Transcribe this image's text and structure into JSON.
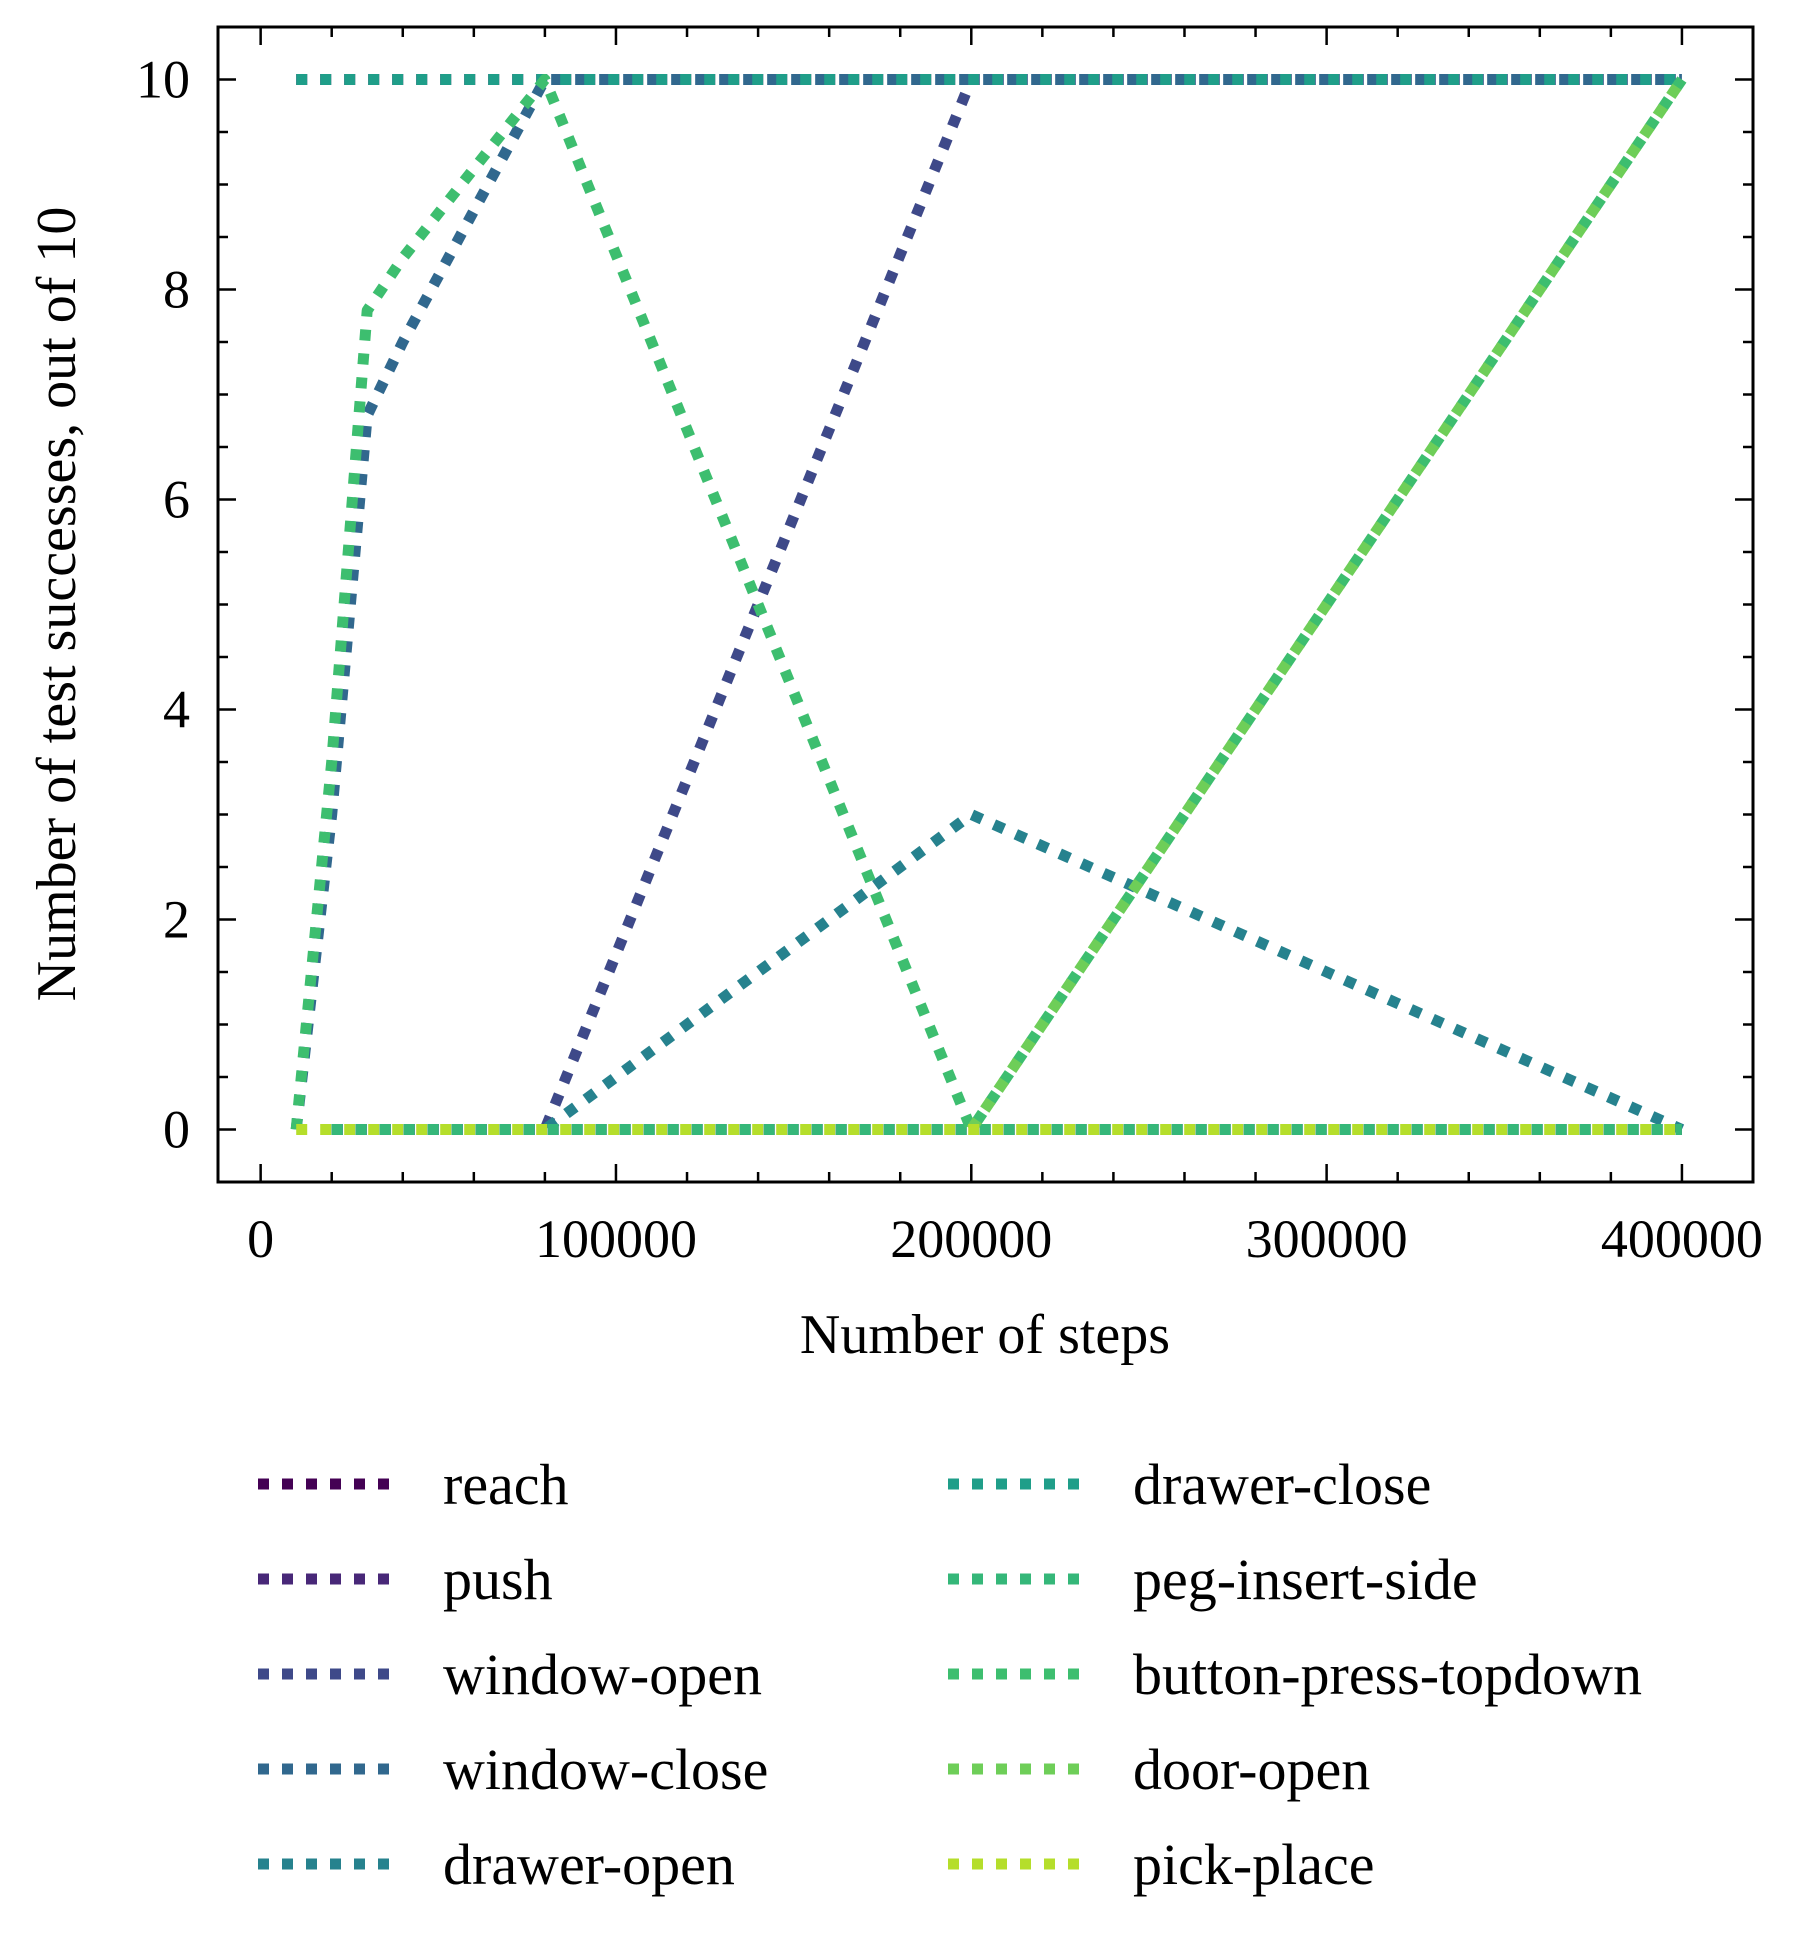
{
  "chart_data": {
    "type": "line",
    "title": "",
    "xlabel": "Number of steps",
    "ylabel": "Number of test successes, out of 10",
    "xlim": [
      -12000,
      420000
    ],
    "ylim": [
      -0.5,
      10.5
    ],
    "xticks": [
      0,
      100000,
      200000,
      300000,
      400000
    ],
    "yticks": [
      0,
      2,
      4,
      6,
      8,
      10
    ],
    "x_tick_labels": [
      "0",
      "100000",
      "200000",
      "300000",
      "400000"
    ],
    "y_tick_labels": [
      "0",
      "2",
      "4",
      "6",
      "8",
      "10"
    ],
    "grid": false,
    "line_style": "dotted",
    "legend_placement": "below",
    "series": [
      {
        "name": "reach",
        "color": "#440154",
        "x": [
          10000,
          20000,
          30000,
          40000,
          80000,
          200000,
          400000
        ],
        "y": [
          10,
          10,
          10,
          10,
          10,
          10,
          10
        ]
      },
      {
        "name": "push",
        "color": "#482878",
        "x": [
          20000,
          30000,
          40000,
          80000,
          200000,
          400000
        ],
        "y": [
          0,
          0,
          0,
          0,
          0,
          0
        ]
      },
      {
        "name": "window-open",
        "color": "#3e4989",
        "x": [
          20000,
          30000,
          40000,
          80000,
          200000,
          400000
        ],
        "y": [
          0,
          0,
          0,
          0,
          10,
          10
        ]
      },
      {
        "name": "window-close",
        "color": "#31688e",
        "x": [
          10000,
          20000,
          30000,
          40000,
          80000,
          200000,
          400000
        ],
        "y": [
          0,
          3,
          6.8,
          7.5,
          10,
          10,
          10
        ]
      },
      {
        "name": "drawer-open",
        "color": "#26828e",
        "x": [
          20000,
          30000,
          40000,
          80000,
          200000,
          400000
        ],
        "y": [
          0,
          0,
          0,
          0,
          3,
          0
        ]
      },
      {
        "name": "drawer-close",
        "color": "#1f9e89",
        "x": [
          10000,
          20000,
          30000,
          40000,
          80000,
          200000,
          400000
        ],
        "y": [
          10,
          10,
          10,
          10,
          10,
          10,
          10
        ]
      },
      {
        "name": "peg-insert-side",
        "color": "#35b779",
        "x": [
          20000,
          30000,
          40000,
          80000,
          200000,
          400000
        ],
        "y": [
          0,
          0,
          0,
          0,
          0,
          0
        ]
      },
      {
        "name": "button-press-topdown",
        "color": "#3dbe6f",
        "x": [
          10000,
          20000,
          30000,
          40000,
          80000,
          200000,
          400000
        ],
        "y": [
          0,
          3.5,
          7.8,
          8.3,
          10,
          0,
          10
        ]
      },
      {
        "name": "door-open",
        "color": "#6ece58",
        "x": [
          200000,
          400000
        ],
        "y": [
          0,
          10
        ]
      },
      {
        "name": "pick-place",
        "color": "#b5de2b",
        "x": [
          10000,
          20000,
          30000,
          40000,
          80000,
          200000,
          400000
        ],
        "y": [
          0,
          0,
          0,
          0,
          0,
          0,
          0
        ]
      }
    ]
  }
}
